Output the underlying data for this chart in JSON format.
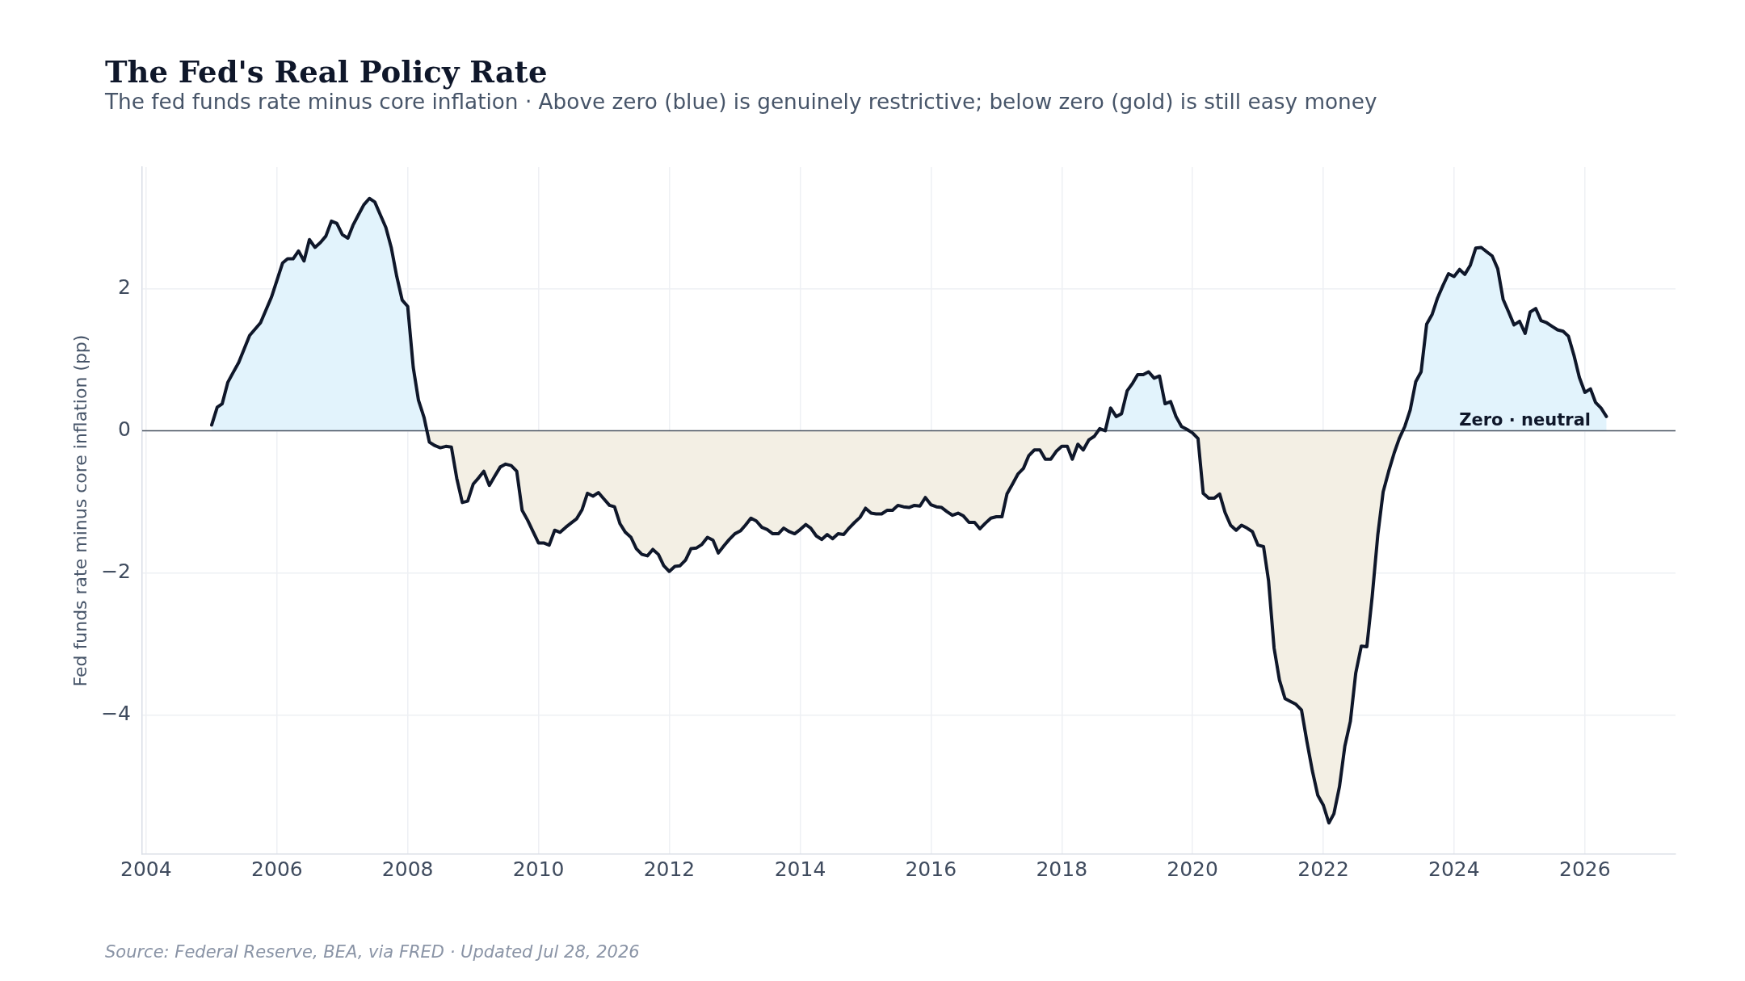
{
  "chart_data": {
    "type": "area",
    "title": "The Fed's Real Policy Rate",
    "subtitle": "The fed funds rate minus core inflation · Above zero (blue) is genuinely restrictive; below zero (gold) is still easy money",
    "ylabel": "Fed funds rate minus core inflation (pp)",
    "annotations": [
      "Source: Federal Reserve, BEA, via FRED · Updated Jul 28, 2026"
    ],
    "x": [
      "2005-01",
      "2005-02",
      "2005-03",
      "2005-04",
      "2005-05",
      "2005-06",
      "2005-08",
      "2005-10",
      "2005-12",
      "2006-02",
      "2006-03",
      "2006-04",
      "2006-05",
      "2006-06",
      "2006-07",
      "2006-08",
      "2006-09",
      "2006-10",
      "2006-11",
      "2006-12",
      "2007-01",
      "2007-02",
      "2007-03",
      "2007-04",
      "2007-05",
      "2007-06",
      "2007-07",
      "2007-08",
      "2007-09",
      "2007-10",
      "2007-11",
      "2007-12",
      "2008-01",
      "2008-02",
      "2008-03",
      "2008-04",
      "2008-05",
      "2008-06",
      "2008-07",
      "2008-08",
      "2008-09",
      "2008-10",
      "2008-11",
      "2008-12",
      "2009-01",
      "2009-02",
      "2009-03",
      "2009-04",
      "2009-05",
      "2009-06",
      "2009-07",
      "2009-08",
      "2009-09",
      "2009-10",
      "2009-11",
      "2009-12",
      "2010-01",
      "2010-02",
      "2010-03",
      "2010-04",
      "2010-05",
      "2010-06",
      "2010-07",
      "2010-08",
      "2010-09",
      "2010-10",
      "2010-11",
      "2010-12",
      "2011-01",
      "2011-02",
      "2011-03",
      "2011-04",
      "2011-05",
      "2011-06",
      "2011-07",
      "2011-08",
      "2011-09",
      "2011-10",
      "2011-11",
      "2011-12",
      "2012-01",
      "2012-02",
      "2012-03",
      "2012-04",
      "2012-05",
      "2012-06",
      "2012-07",
      "2012-08",
      "2012-09",
      "2012-10",
      "2012-11",
      "2012-12",
      "2013-01",
      "2013-02",
      "2013-03",
      "2013-04",
      "2013-05",
      "2013-06",
      "2013-07",
      "2013-08",
      "2013-09",
      "2013-10",
      "2013-11",
      "2013-12",
      "2014-01",
      "2014-02",
      "2014-03",
      "2014-04",
      "2014-05",
      "2014-06",
      "2014-07",
      "2014-08",
      "2014-09",
      "2014-10",
      "2014-11",
      "2014-12",
      "2015-01",
      "2015-02",
      "2015-03",
      "2015-04",
      "2015-05",
      "2015-06",
      "2015-07",
      "2015-08",
      "2015-09",
      "2015-10",
      "2015-11",
      "2015-12",
      "2016-01",
      "2016-02",
      "2016-03",
      "2016-04",
      "2016-05",
      "2016-06",
      "2016-07",
      "2016-08",
      "2016-09",
      "2016-10",
      "2016-11",
      "2016-12",
      "2017-01",
      "2017-02",
      "2017-03",
      "2017-04",
      "2017-05",
      "2017-06",
      "2017-07",
      "2017-08",
      "2017-09",
      "2017-10",
      "2017-11",
      "2017-12",
      "2018-01",
      "2018-02",
      "2018-03",
      "2018-04",
      "2018-05",
      "2018-06",
      "2018-07",
      "2018-08",
      "2018-09",
      "2018-10",
      "2018-11",
      "2018-12",
      "2019-01",
      "2019-02",
      "2019-03",
      "2019-04",
      "2019-05",
      "2019-06",
      "2019-07",
      "2019-08",
      "2019-09",
      "2019-10",
      "2019-11",
      "2019-12",
      "2020-01",
      "2020-02",
      "2020-03",
      "2020-04",
      "2020-05",
      "2020-06",
      "2020-07",
      "2020-08",
      "2020-09",
      "2020-10",
      "2020-11",
      "2020-12",
      "2021-01",
      "2021-02",
      "2021-03",
      "2021-04",
      "2021-05",
      "2021-06",
      "2021-07",
      "2021-08",
      "2021-09",
      "2021-10",
      "2021-11",
      "2021-12",
      "2022-01",
      "2022-02",
      "2022-03",
      "2022-04",
      "2022-05",
      "2022-06",
      "2022-07",
      "2022-08",
      "2022-09",
      "2022-10",
      "2022-11",
      "2022-12",
      "2023-01",
      "2023-02",
      "2023-03",
      "2023-04",
      "2023-05",
      "2023-06",
      "2023-07",
      "2023-08",
      "2023-09",
      "2023-10",
      "2023-11",
      "2023-12",
      "2024-01",
      "2024-02",
      "2024-03",
      "2024-04",
      "2024-05",
      "2024-06",
      "2024-07",
      "2024-08",
      "2024-09",
      "2024-10",
      "2024-11",
      "2024-12",
      "2025-01",
      "2025-02",
      "2025-03",
      "2025-04",
      "2025-05",
      "2025-06",
      "2025-07",
      "2025-08",
      "2025-09",
      "2025-10",
      "2025-11",
      "2025-12",
      "2026-01",
      "2026-02",
      "2026-03",
      "2026-04",
      "2026-05"
    ],
    "series": [
      {
        "color": "#0f172a",
        "values": [
          0.08,
          0.33,
          0.38,
          0.68,
          0.82,
          0.96,
          1.34,
          1.52,
          1.88,
          2.36,
          2.42,
          2.42,
          2.53,
          2.39,
          2.69,
          2.58,
          2.65,
          2.74,
          2.95,
          2.92,
          2.76,
          2.71,
          2.89,
          3.04,
          3.18,
          3.27,
          3.22,
          3.04,
          2.86,
          2.58,
          2.17,
          1.84,
          1.75,
          0.89,
          0.43,
          0.19,
          -0.16,
          -0.21,
          -0.24,
          -0.22,
          -0.23,
          -0.67,
          -1.01,
          -0.99,
          -0.75,
          -0.66,
          -0.57,
          -0.77,
          -0.64,
          -0.51,
          -0.47,
          -0.49,
          -0.57,
          -1.12,
          -1.26,
          -1.42,
          -1.58,
          -1.58,
          -1.61,
          -1.4,
          -1.43,
          -1.36,
          -1.3,
          -1.24,
          -1.11,
          -0.88,
          -0.92,
          -0.87,
          -0.96,
          -1.05,
          -1.07,
          -1.31,
          -1.43,
          -1.5,
          -1.66,
          -1.74,
          -1.76,
          -1.67,
          -1.74,
          -1.9,
          -1.98,
          -1.91,
          -1.9,
          -1.82,
          -1.66,
          -1.65,
          -1.6,
          -1.5,
          -1.54,
          -1.72,
          -1.62,
          -1.53,
          -1.45,
          -1.41,
          -1.33,
          -1.23,
          -1.27,
          -1.36,
          -1.39,
          -1.45,
          -1.45,
          -1.37,
          -1.42,
          -1.45,
          -1.39,
          -1.32,
          -1.37,
          -1.48,
          -1.53,
          -1.46,
          -1.52,
          -1.45,
          -1.46,
          -1.37,
          -1.29,
          -1.22,
          -1.09,
          -1.16,
          -1.17,
          -1.17,
          -1.12,
          -1.12,
          -1.05,
          -1.07,
          -1.08,
          -1.05,
          -1.06,
          -0.94,
          -1.04,
          -1.07,
          -1.08,
          -1.14,
          -1.19,
          -1.16,
          -1.2,
          -1.29,
          -1.29,
          -1.38,
          -1.3,
          -1.23,
          -1.21,
          -1.21,
          -0.89,
          -0.75,
          -0.61,
          -0.53,
          -0.35,
          -0.27,
          -0.27,
          -0.4,
          -0.4,
          -0.29,
          -0.22,
          -0.22,
          -0.4,
          -0.19,
          -0.27,
          -0.13,
          -0.08,
          0.03,
          0.0,
          0.32,
          0.2,
          0.24,
          0.56,
          0.67,
          0.79,
          0.79,
          0.83,
          0.74,
          0.77,
          0.38,
          0.41,
          0.2,
          0.06,
          0.02,
          -0.03,
          -0.11,
          -0.88,
          -0.95,
          -0.95,
          -0.89,
          -1.15,
          -1.33,
          -1.4,
          -1.33,
          -1.37,
          -1.42,
          -1.61,
          -1.63,
          -2.11,
          -3.06,
          -3.51,
          -3.77,
          -3.81,
          -3.85,
          -3.93,
          -4.37,
          -4.79,
          -5.13,
          -5.27,
          -5.52,
          -5.39,
          -5.01,
          -4.44,
          -4.09,
          -3.41,
          -3.03,
          -3.04,
          -2.33,
          -1.47,
          -0.86,
          -0.57,
          -0.31,
          -0.11,
          0.06,
          0.29,
          0.69,
          0.83,
          1.5,
          1.64,
          1.87,
          2.05,
          2.21,
          2.17,
          2.27,
          2.2,
          2.33,
          2.57,
          2.58,
          2.52,
          2.46,
          2.28,
          1.85,
          1.67,
          1.49,
          1.54,
          1.37,
          1.67,
          1.72,
          1.55,
          1.52,
          1.47,
          1.42,
          1.4,
          1.33,
          1.06,
          0.75,
          0.54,
          0.59,
          0.4,
          0.32,
          0.2
        ],
        "colors": [
          "#e2f3fc",
          "#e2f3fc",
          "#e2f3fc",
          "#e2f3fc",
          "#e2f3fc",
          "#e2f3fc",
          "#e2f3fc",
          "#e2f3fc",
          "#e2f3fc",
          "#e2f3fc",
          "#e2f3fc",
          "#e2f3fc",
          "#e2f3fc",
          "#e2f3fc",
          "#e2f3fc",
          "#e2f3fc",
          "#e2f3fc",
          "#e2f3fc",
          "#e2f3fc",
          "#e2f3fc",
          "#e2f3fc",
          "#e2f3fc",
          "#e2f3fc",
          "#e2f3fc",
          "#e2f3fc",
          "#e2f3fc",
          "#e2f3fc",
          "#e2f3fc",
          "#e2f3fc",
          "#e2f3fc",
          "#e2f3fc",
          "#e2f3fc",
          "#e2f3fc",
          "#e2f3fc",
          "#e2f3fc",
          "#e2f3fc",
          "#f3efe4",
          "#f3efe4",
          "#f3efe4",
          "#f3efe4",
          "#f3efe4",
          "#f3efe4",
          "#f3efe4",
          "#f3efe4",
          "#f3efe4",
          "#f3efe4",
          "#f3efe4",
          "#f3efe4",
          "#f3efe4",
          "#f3efe4",
          "#f3efe4",
          "#f3efe4",
          "#f3efe4",
          "#f3efe4",
          "#f3efe4",
          "#f3efe4",
          "#f3efe4",
          "#f3efe4",
          "#f3efe4",
          "#f3efe4",
          "#f3efe4",
          "#f3efe4",
          "#f3efe4",
          "#f3efe4",
          "#f3efe4",
          "#f3efe4",
          "#f3efe4",
          "#f3efe4",
          "#f3efe4",
          "#f3efe4",
          "#f3efe4",
          "#f3efe4",
          "#f3efe4",
          "#f3efe4",
          "#f3efe4",
          "#f3efe4",
          "#f3efe4",
          "#f3efe4",
          "#f3efe4",
          "#f3efe4",
          "#f3efe4",
          "#f3efe4",
          "#f3efe4",
          "#f3efe4",
          "#f3efe4",
          "#f3efe4",
          "#f3efe4",
          "#f3efe4",
          "#f3efe4",
          "#f3efe4",
          "#f3efe4",
          "#f3efe4",
          "#f3efe4",
          "#f3efe4",
          "#f3efe4",
          "#f3efe4",
          "#f3efe4",
          "#f3efe4",
          "#f3efe4",
          "#f3efe4",
          "#f3efe4",
          "#f3efe4",
          "#f3efe4",
          "#f3efe4",
          "#f3efe4",
          "#f3efe4",
          "#f3efe4",
          "#f3efe4",
          "#f3efe4",
          "#f3efe4",
          "#f3efe4",
          "#f3efe4",
          "#f3efe4",
          "#f3efe4",
          "#f3efe4",
          "#f3efe4",
          "#f3efe4",
          "#f3efe4",
          "#f3efe4",
          "#f3efe4",
          "#f3efe4",
          "#f3efe4",
          "#f3efe4",
          "#f3efe4",
          "#f3efe4",
          "#f3efe4",
          "#f3efe4",
          "#f3efe4",
          "#f3efe4",
          "#f3efe4",
          "#f3efe4",
          "#f3efe4",
          "#f3efe4",
          "#f3efe4",
          "#f3efe4",
          "#f3efe4",
          "#f3efe4",
          "#f3efe4",
          "#f3efe4",
          "#f3efe4",
          "#f3efe4",
          "#f3efe4",
          "#f3efe4",
          "#f3efe4",
          "#f3efe4",
          "#f3efe4",
          "#f3efe4",
          "#f3efe4",
          "#f3efe4",
          "#f3efe4",
          "#f3efe4",
          "#f3efe4",
          "#f3efe4",
          "#f3efe4",
          "#f3efe4",
          "#f3efe4",
          "#f3efe4",
          "#f3efe4",
          "#f3efe4",
          "#e2f3fc",
          "#e2f3fc",
          "#e2f3fc",
          "#e2f3fc",
          "#e2f3fc",
          "#e2f3fc",
          "#e2f3fc",
          "#e2f3fc",
          "#e2f3fc",
          "#e2f3fc",
          "#e2f3fc",
          "#e2f3fc",
          "#e2f3fc",
          "#e2f3fc",
          "#e2f3fc",
          "#e2f3fc",
          "#e2f3fc",
          "#f3efe4",
          "#f3efe4",
          "#f3efe4",
          "#f3efe4",
          "#f3efe4",
          "#f3efe4",
          "#f3efe4",
          "#f3efe4",
          "#f3efe4",
          "#f3efe4",
          "#f3efe4",
          "#f3efe4",
          "#f3efe4",
          "#f3efe4",
          "#f3efe4",
          "#f3efe4",
          "#f3efe4",
          "#f3efe4",
          "#f3efe4",
          "#f3efe4",
          "#f3efe4",
          "#f3efe4",
          "#f3efe4",
          "#f3efe4",
          "#f3efe4",
          "#f3efe4",
          "#f3efe4",
          "#f3efe4",
          "#f3efe4",
          "#f3efe4",
          "#f3efe4",
          "#f3efe4",
          "#f3efe4",
          "#f3efe4",
          "#f3efe4",
          "#f3efe4",
          "#f3efe4",
          "#f3efe4",
          "#f3efe4",
          "#e2f3fc",
          "#e2f3fc",
          "#e2f3fc",
          "#e2f3fc",
          "#e2f3fc",
          "#e2f3fc",
          "#e2f3fc",
          "#e2f3fc",
          "#e2f3fc",
          "#e2f3fc",
          "#e2f3fc",
          "#e2f3fc",
          "#e2f3fc",
          "#e2f3fc",
          "#e2f3fc",
          "#e2f3fc",
          "#e2f3fc",
          "#e2f3fc",
          "#e2f3fc",
          "#e2f3fc",
          "#e2f3fc",
          "#e2f3fc",
          "#e2f3fc",
          "#e2f3fc",
          "#e2f3fc",
          "#e2f3fc",
          "#e2f3fc",
          "#e2f3fc",
          "#e2f3fc",
          "#e2f3fc",
          "#e2f3fc",
          "#e2f3fc",
          "#e2f3fc",
          "#e2f3fc",
          "#e2f3fc",
          "#e2f3fc",
          "#e2f3fc",
          "#e2f3fc"
        ]
      }
    ],
    "xlim": [
      "2003-12-10",
      "2027-05-22"
    ],
    "xticks": [
      "2004",
      "2006",
      "2008",
      "2010",
      "2012",
      "2014",
      "2016",
      "2018",
      "2020",
      "2022",
      "2024",
      "2026"
    ],
    "ylim": [
      -5.96,
      3.71
    ],
    "yticks": [
      {
        "value": -4,
        "label": "−4"
      },
      {
        "value": -2,
        "label": "−2"
      },
      0,
      2
    ],
    "ref_lines": [
      {
        "axis": "y",
        "value": 0,
        "label": "Zero · neutral",
        "color": "#4b5563"
      }
    ],
    "grid": true
  }
}
